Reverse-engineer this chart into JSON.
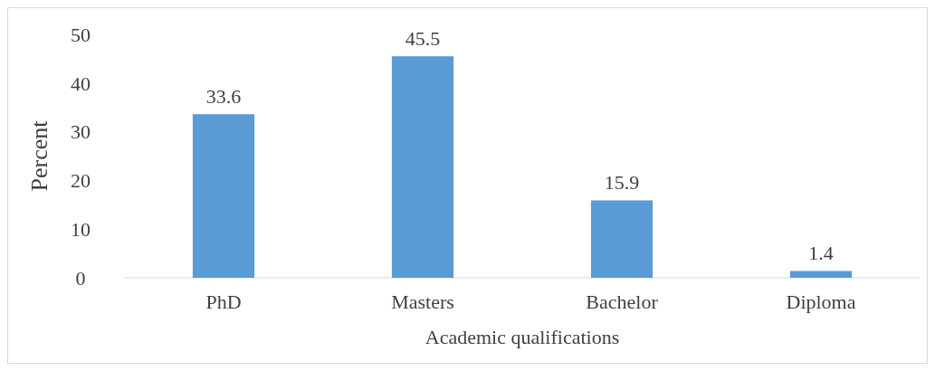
{
  "chart_data": {
    "type": "bar",
    "xlabel": "Academic qualifications",
    "ylabel": "Percent",
    "categories": [
      "PhD",
      "Masters",
      "Bachelor",
      "Diploma"
    ],
    "values": [
      33.6,
      45.5,
      15.9,
      1.4
    ],
    "color": "#5b9bd5",
    "ylim": [
      0,
      50
    ],
    "yticks": [
      0,
      10,
      20,
      30,
      40,
      50
    ],
    "data_labels": true,
    "grid": false
  }
}
